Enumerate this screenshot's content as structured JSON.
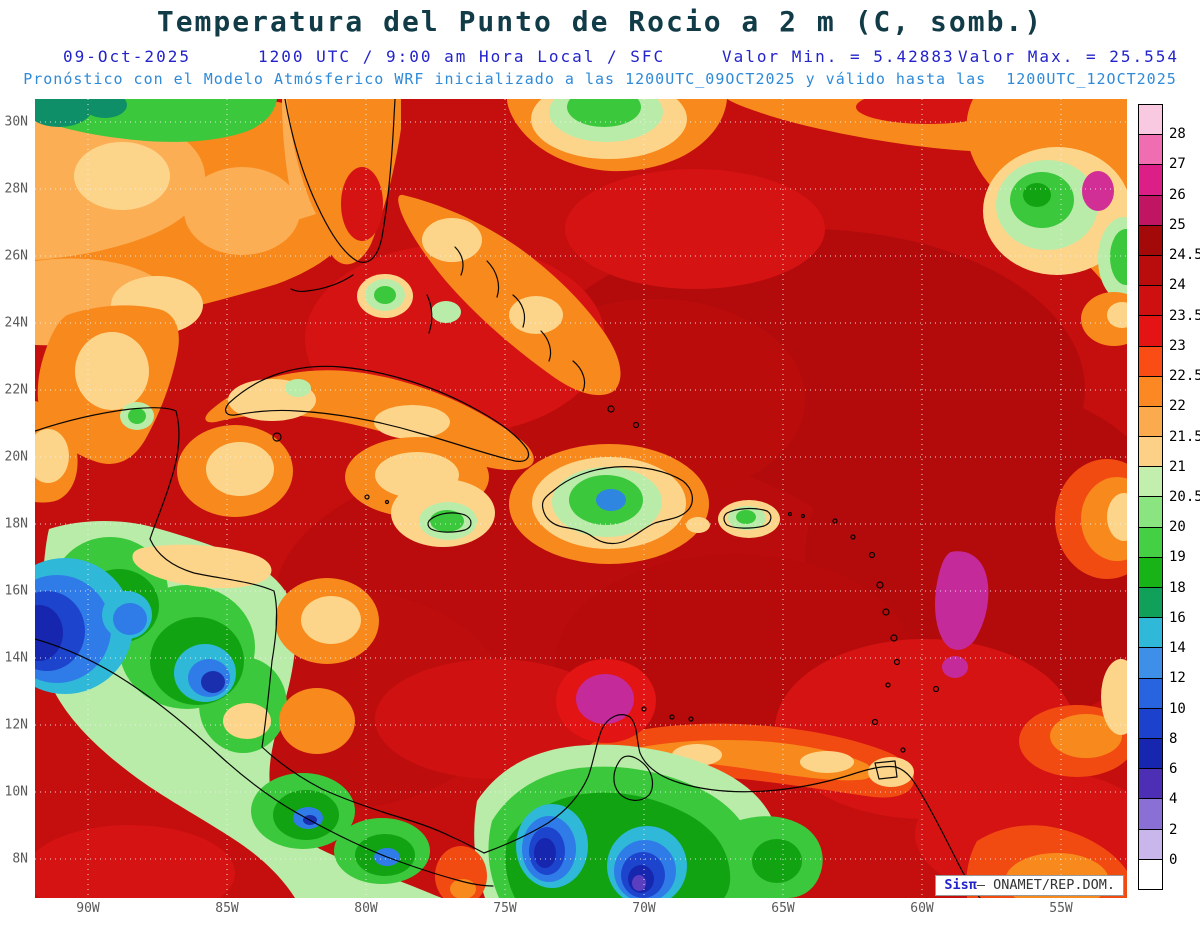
{
  "title": "Temperatura del Punto de Rocio a 2 m (C, somb.)",
  "header": {
    "date": "09-Oct-2025",
    "time": "1200 UTC / 9:00 am Hora Local / SFC",
    "min_label": "Valor Min. = 5.42883",
    "max_label": "Valor Max. = 25.554",
    "forecast": "Pronóstico con el Modelo Atmósferico WRF inicializado a las 1200UTC_09OCT2025 y válido hasta las  1200UTC_12OCT2025"
  },
  "axes": {
    "lat_labels": [
      "30N",
      "28N",
      "26N",
      "24N",
      "22N",
      "20N",
      "18N",
      "16N",
      "14N",
      "12N",
      "10N",
      "8N"
    ],
    "lon_labels": [
      "90W",
      "85W",
      "80W",
      "75W",
      "70W",
      "65W",
      "60W",
      "55W"
    ]
  },
  "colorbar": {
    "labels": [
      "28",
      "27",
      "26",
      "25",
      "24.5",
      "24",
      "23.5",
      "23",
      "22.5",
      "22",
      "21.5",
      "21",
      "20.5",
      "20",
      "19",
      "18",
      "16",
      "14",
      "12",
      "10",
      "8",
      "6",
      "4",
      "2",
      "0"
    ],
    "colors": [
      "#f9c9e1",
      "#ef6db0",
      "#dc1f87",
      "#c01563",
      "#a30909",
      "#b90c0c",
      "#cf1010",
      "#e51414",
      "#fa4d15",
      "#fb8822",
      "#fcaa4e",
      "#fdd088",
      "#c2eeae",
      "#8ae47f",
      "#44cf44",
      "#17b317",
      "#10a05a",
      "#2fb8d8",
      "#3d8fe8",
      "#2864e0",
      "#1c41cc",
      "#1726ae",
      "#4c2fb5",
      "#8a6fd4",
      "#c9b6ea",
      "#ffffff"
    ]
  },
  "watermark": {
    "brand": "Sisπ",
    "text": "— ONAMET/REP.DOM."
  }
}
